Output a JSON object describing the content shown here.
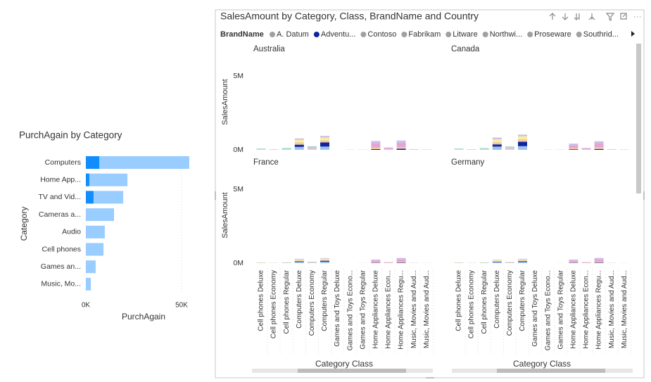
{
  "chart_data": [
    {
      "type": "bar",
      "orientation": "horizontal",
      "title": "PurchAgain by Category",
      "x_label": "PurchAgain",
      "y_label": "Category",
      "categories": [
        "Computers",
        "Home App...",
        "TV and Vid...",
        "Cameras a...",
        "Audio",
        "Cell phones",
        "Games an...",
        "Music, Mo..."
      ],
      "series": [
        {
          "color": "#99ccff",
          "values": [
            54,
            21.7,
            19.5,
            14.7,
            9.9,
            9.2,
            5.1,
            2.6
          ]
        },
        {
          "color": "#118dff",
          "values": [
            7,
            1.8,
            4,
            0,
            0,
            0,
            0,
            0
          ]
        }
      ],
      "xlim": [
        0,
        55
      ],
      "xticks": [
        {
          "value": 0,
          "label": "0K"
        },
        {
          "value": 50,
          "label": "50K"
        }
      ],
      "grid": true
    },
    {
      "type": "stacked-column",
      "title": "SalesAmount by Category, Class, BrandName and Country",
      "legend_title": "BrandName",
      "x_label": "Category Class",
      "y_label": "SalesAmount",
      "facets": [
        "Australia",
        "Canada",
        "France",
        "Germany"
      ],
      "categories": [
        "Cell phones Deluxe",
        "Cell phones Economy",
        "Cell phones Regular",
        "Computers Deluxe",
        "Computers Economy",
        "Computers Regular",
        "Games and Toys Deluxe",
        "Games and Toys Econo...",
        "Games and Toys Regular",
        "Home Appliances Deluxe",
        "Home Appliances Econ...",
        "Home Appliances Regu...",
        "Music, Movies and Aud...",
        "Music, Movies and Aud..."
      ],
      "ylim": [
        0,
        6.2
      ],
      "yticks": [
        {
          "value": 0,
          "label": "0M"
        },
        {
          "value": 5,
          "label": "5M"
        }
      ],
      "grid": false,
      "series": [
        {
          "name": "A. Datum",
          "color": "#9cc3ee",
          "legend_color": "#a0a0a0",
          "values": [
            [
              0,
              0,
              0,
              0.2,
              0,
              0.22,
              0,
              0,
              0,
              0,
              0,
              0,
              0,
              0
            ],
            [
              0,
              0,
              0,
              0.22,
              0,
              0.25,
              0,
              0,
              0,
              0,
              0,
              0,
              0,
              0
            ],
            [
              0,
              0,
              0,
              0.08,
              0,
              0.1,
              0,
              0,
              0,
              0,
              0,
              0,
              0,
              0
            ],
            [
              0,
              0,
              0,
              0.06,
              0,
              0.08,
              0,
              0,
              0,
              0,
              0,
              0,
              0,
              0
            ]
          ]
        },
        {
          "name": "Adventu...",
          "color": "#12239e",
          "legend_color": "#12239e",
          "values": [
            [
              0,
              0,
              0,
              0.15,
              0,
              0.28,
              0,
              0,
              0,
              0.05,
              0,
              0.08,
              0,
              0
            ],
            [
              0,
              0,
              0,
              0.15,
              0,
              0.3,
              0,
              0,
              0,
              0.04,
              0,
              0.06,
              0,
              0
            ],
            [
              0,
              0,
              0,
              0.04,
              0,
              0.06,
              0,
              0,
              0,
              0.02,
              0,
              0.03,
              0,
              0
            ],
            [
              0,
              0,
              0,
              0.03,
              0,
              0.05,
              0,
              0,
              0,
              0.02,
              0,
              0.03,
              0,
              0
            ]
          ]
        },
        {
          "name": "Contoso",
          "color": "#f3c9a3",
          "legend_color": "#a0a0a0",
          "values": [
            [
              0.04,
              0.02,
              0.05,
              0.15,
              0.08,
              0.15,
              0,
              0.01,
              0.01,
              0.1,
              0.05,
              0.1,
              0.02,
              0.01
            ],
            [
              0.04,
              0.02,
              0.05,
              0.15,
              0.08,
              0.17,
              0,
              0.01,
              0.01,
              0.08,
              0.04,
              0.1,
              0.02,
              0.01
            ],
            [
              0.02,
              0.01,
              0.02,
              0.06,
              0.03,
              0.06,
              0,
              0,
              0.01,
              0.04,
              0.02,
              0.06,
              0.01,
              0.01
            ],
            [
              0.02,
              0.01,
              0.02,
              0.05,
              0.03,
              0.05,
              0,
              0,
              0.01,
              0.04,
              0.02,
              0.06,
              0.01,
              0.01
            ]
          ]
        },
        {
          "name": "Fabrikam",
          "color": "#f8eea0",
          "legend_color": "#a0a0a0",
          "values": [
            [
              0,
              0,
              0,
              0.18,
              0,
              0.18,
              0,
              0,
              0,
              0,
              0,
              0,
              0,
              0
            ],
            [
              0,
              0,
              0,
              0.2,
              0,
              0.2,
              0,
              0,
              0,
              0,
              0,
              0,
              0,
              0
            ],
            [
              0,
              0,
              0,
              0.07,
              0,
              0.08,
              0,
              0,
              0,
              0,
              0,
              0,
              0,
              0
            ],
            [
              0,
              0,
              0,
              0.06,
              0,
              0.07,
              0,
              0,
              0,
              0,
              0,
              0,
              0,
              0
            ]
          ]
        },
        {
          "name": "Litware",
          "color": "#e3a6d2",
          "legend_color": "#a0a0a0",
          "values": [
            [
              0,
              0,
              0,
              0,
              0,
              0,
              0,
              0,
              0,
              0.3,
              0.08,
              0.3,
              0,
              0
            ],
            [
              0,
              0,
              0,
              0,
              0,
              0,
              0,
              0,
              0,
              0.2,
              0.06,
              0.3,
              0,
              0
            ],
            [
              0,
              0,
              0,
              0,
              0,
              0,
              0,
              0,
              0,
              0.12,
              0.04,
              0.18,
              0,
              0
            ],
            [
              0,
              0,
              0,
              0,
              0,
              0,
              0,
              0,
              0,
              0.12,
              0.04,
              0.18,
              0,
              0
            ]
          ]
        },
        {
          "name": "Northwi...",
          "color": "#cdbde8",
          "legend_color": "#a0a0a0",
          "values": [
            [
              0,
              0,
              0,
              0.08,
              0.12,
              0.1,
              0,
              0,
              0,
              0.15,
              0.03,
              0.15,
              0.02,
              0.01
            ],
            [
              0,
              0,
              0,
              0.1,
              0.1,
              0.1,
              0,
              0,
              0,
              0.1,
              0.03,
              0.12,
              0.02,
              0.01
            ],
            [
              0,
              0,
              0,
              0.04,
              0.04,
              0.04,
              0,
              0,
              0,
              0.06,
              0.01,
              0.08,
              0.01,
              0
            ],
            [
              0,
              0,
              0,
              0.03,
              0.03,
              0.04,
              0,
              0,
              0,
              0.06,
              0.01,
              0.08,
              0.01,
              0
            ]
          ]
        },
        {
          "name": "Proseware",
          "color": "#a3dcc8",
          "legend_color": "#a0a0a0",
          "values": [
            [
              0.05,
              0.02,
              0.08,
              0,
              0.05,
              0,
              0,
              0.01,
              0.01,
              0,
              0,
              0,
              0.01,
              0.01
            ],
            [
              0.05,
              0.02,
              0.07,
              0,
              0.05,
              0,
              0,
              0.01,
              0.01,
              0,
              0,
              0,
              0.01,
              0.01
            ],
            [
              0.02,
              0.01,
              0.03,
              0,
              0.02,
              0,
              0,
              0,
              0,
              0,
              0,
              0,
              0,
              0
            ],
            [
              0.02,
              0.01,
              0.03,
              0,
              0.02,
              0,
              0,
              0,
              0,
              0,
              0,
              0,
              0,
              0
            ]
          ]
        },
        {
          "name": "Southrid...",
          "color": "#dcdcdc",
          "legend_color": "#a0a0a0",
          "values": [
            [
              0,
              0,
              0,
              0.02,
              0,
              0.02,
              0,
              0,
              0,
              0,
              0,
              0,
              0,
              0
            ],
            [
              0,
              0,
              0,
              0.02,
              0,
              0.02,
              0,
              0,
              0,
              0,
              0,
              0,
              0,
              0
            ],
            [
              0,
              0,
              0,
              0.01,
              0,
              0.01,
              0,
              0,
              0,
              0,
              0,
              0,
              0,
              0
            ],
            [
              0,
              0,
              0,
              0.01,
              0,
              0.01,
              0,
              0,
              0,
              0,
              0,
              0,
              0,
              0
            ]
          ]
        }
      ]
    }
  ]
}
